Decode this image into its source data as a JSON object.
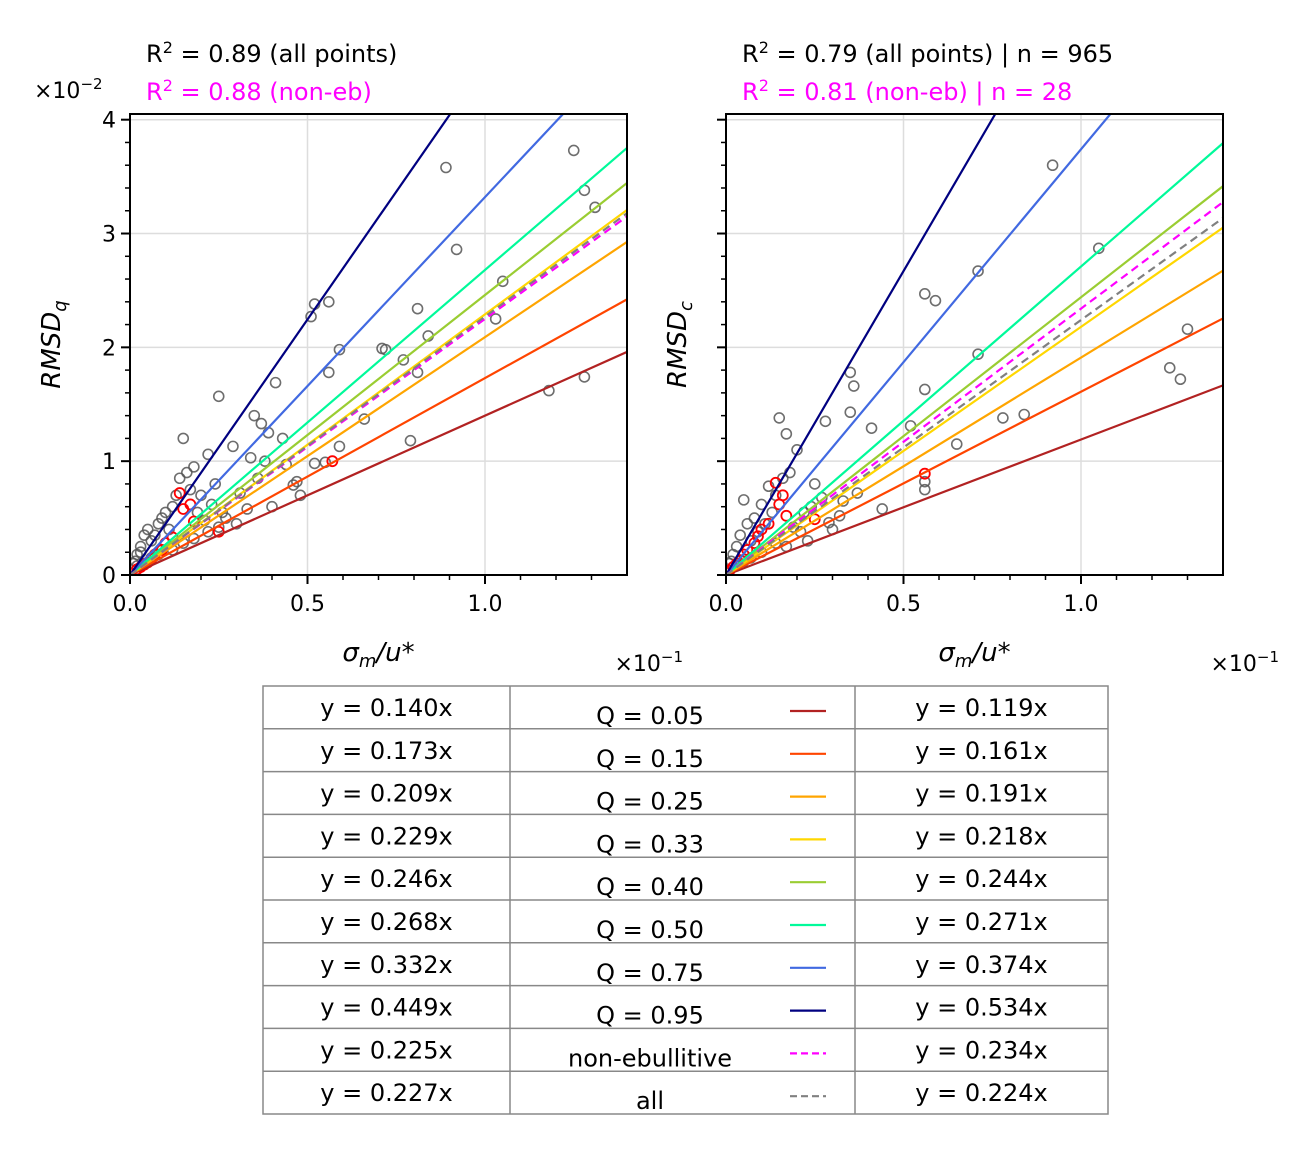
{
  "colors": {
    "Q = 0.05": "#b22222",
    "Q = 0.15": "#ff4500",
    "Q = 0.25": "#ffa500",
    "Q = 0.33": "#ffd700",
    "Q = 0.40": "#9acd32",
    "Q = 0.50": "#00fa9a",
    "Q = 0.75": "#4169e1",
    "Q = 0.95": "#000080",
    "non-ebullitive": "#ff00ff",
    "all": "#808080",
    "points_all": "#555555",
    "points_non_eb": "#ff0000",
    "grid": "#dddddd"
  },
  "chart_data": [
    {
      "type": "scatter",
      "panel": "left",
      "annotation_all": "R² = 0.89 (all points)",
      "annotation_non_eb": "R² = 0.88 (non-eb)",
      "xlabel": "σm/u*",
      "ylabel": "RMSDq",
      "x_multiplier": "×10⁻¹",
      "y_multiplier": "×10⁻²",
      "xlim": [
        0,
        1.4
      ],
      "ylim": [
        0,
        4.05
      ],
      "xticks": [
        "0.0",
        "0.5",
        "1.0"
      ],
      "yticks": [
        "0",
        "1",
        "2",
        "3",
        "4"
      ],
      "grid": true,
      "fit_lines": [
        {
          "name": "Q = 0.05",
          "slope": 0.14
        },
        {
          "name": "Q = 0.15",
          "slope": 0.173
        },
        {
          "name": "Q = 0.25",
          "slope": 0.209
        },
        {
          "name": "Q = 0.33",
          "slope": 0.229
        },
        {
          "name": "Q = 0.40",
          "slope": 0.246
        },
        {
          "name": "Q = 0.50",
          "slope": 0.268
        },
        {
          "name": "Q = 0.75",
          "slope": 0.332
        },
        {
          "name": "Q = 0.95",
          "slope": 0.449
        },
        {
          "name": "non-ebullitive",
          "slope": 0.225,
          "dashed": true
        },
        {
          "name": "all",
          "slope": 0.227,
          "dashed": true
        }
      ],
      "points_all": [
        [
          0.89,
          3.58
        ],
        [
          1.25,
          3.73
        ],
        [
          1.28,
          3.38
        ],
        [
          1.31,
          3.23
        ],
        [
          0.92,
          2.86
        ],
        [
          1.05,
          2.58
        ],
        [
          0.51,
          2.27
        ],
        [
          0.52,
          2.38
        ],
        [
          0.56,
          2.4
        ],
        [
          0.59,
          1.98
        ],
        [
          0.56,
          1.78
        ],
        [
          0.81,
          2.34
        ],
        [
          0.84,
          2.1
        ],
        [
          0.71,
          1.99
        ],
        [
          0.72,
          1.98
        ],
        [
          0.77,
          1.89
        ],
        [
          0.81,
          1.78
        ],
        [
          1.03,
          2.25
        ],
        [
          0.25,
          1.57
        ],
        [
          0.41,
          1.69
        ],
        [
          0.15,
          1.2
        ],
        [
          0.35,
          1.4
        ],
        [
          0.37,
          1.33
        ],
        [
          0.39,
          1.25
        ],
        [
          0.43,
          1.2
        ],
        [
          0.29,
          1.13
        ],
        [
          0.22,
          1.06
        ],
        [
          0.34,
          1.03
        ],
        [
          0.38,
          1.0
        ],
        [
          0.44,
          0.97
        ],
        [
          0.47,
          0.82
        ],
        [
          0.48,
          0.7
        ],
        [
          0.46,
          0.79
        ],
        [
          0.4,
          0.6
        ],
        [
          0.52,
          0.98
        ],
        [
          0.59,
          1.13
        ],
        [
          0.66,
          1.37
        ],
        [
          0.79,
          1.18
        ],
        [
          0.55,
          0.99
        ],
        [
          1.18,
          1.62
        ],
        [
          1.28,
          1.74
        ],
        [
          0.3,
          0.45
        ],
        [
          0.26,
          0.55
        ],
        [
          0.2,
          0.7
        ],
        [
          0.18,
          0.95
        ],
        [
          0.12,
          0.6
        ],
        [
          0.1,
          0.55
        ],
        [
          0.08,
          0.45
        ],
        [
          0.06,
          0.3
        ],
        [
          0.05,
          0.4
        ],
        [
          0.04,
          0.35
        ],
        [
          0.03,
          0.25
        ],
        [
          0.02,
          0.18
        ],
        [
          0.015,
          0.12
        ],
        [
          0.01,
          0.1
        ],
        [
          0.03,
          0.2
        ],
        [
          0.07,
          0.35
        ],
        [
          0.09,
          0.5
        ],
        [
          0.11,
          0.4
        ],
        [
          0.13,
          0.7
        ],
        [
          0.14,
          0.85
        ],
        [
          0.16,
          0.9
        ],
        [
          0.17,
          0.75
        ],
        [
          0.19,
          0.55
        ],
        [
          0.21,
          0.48
        ],
        [
          0.23,
          0.62
        ],
        [
          0.25,
          0.42
        ],
        [
          0.27,
          0.5
        ],
        [
          0.31,
          0.72
        ],
        [
          0.33,
          0.58
        ],
        [
          0.36,
          0.85
        ],
        [
          0.24,
          0.8
        ],
        [
          0.22,
          0.38
        ],
        [
          0.18,
          0.32
        ],
        [
          0.15,
          0.28
        ],
        [
          0.12,
          0.22
        ],
        [
          0.08,
          0.18
        ],
        [
          0.06,
          0.15
        ],
        [
          0.04,
          0.1
        ],
        [
          0.02,
          0.08
        ]
      ],
      "points_non_eb": [
        [
          0.14,
          0.72
        ],
        [
          0.15,
          0.58
        ],
        [
          0.17,
          0.62
        ],
        [
          0.18,
          0.47
        ],
        [
          0.57,
          1.0
        ],
        [
          0.12,
          0.33
        ],
        [
          0.1,
          0.28
        ],
        [
          0.09,
          0.22
        ],
        [
          0.07,
          0.18
        ],
        [
          0.06,
          0.14
        ],
        [
          0.05,
          0.11
        ],
        [
          0.04,
          0.09
        ],
        [
          0.03,
          0.07
        ],
        [
          0.02,
          0.05
        ],
        [
          0.25,
          0.38
        ]
      ]
    },
    {
      "type": "scatter",
      "panel": "right",
      "annotation_all": "R² = 0.79 (all points) | n = 965",
      "annotation_non_eb": "R² = 0.81 (non-eb) | n = 28",
      "xlabel": "σm/u*",
      "ylabel": "RMSDc",
      "x_multiplier": "×10⁻¹",
      "xlim": [
        0,
        1.4
      ],
      "ylim": [
        0,
        4.05
      ],
      "xticks": [
        "0.0",
        "0.5",
        "1.0"
      ],
      "grid": true,
      "fit_lines": [
        {
          "name": "Q = 0.05",
          "slope": 0.119
        },
        {
          "name": "Q = 0.15",
          "slope": 0.161
        },
        {
          "name": "Q = 0.25",
          "slope": 0.191
        },
        {
          "name": "Q = 0.33",
          "slope": 0.218
        },
        {
          "name": "Q = 0.40",
          "slope": 0.244
        },
        {
          "name": "Q = 0.50",
          "slope": 0.271
        },
        {
          "name": "Q = 0.75",
          "slope": 0.374
        },
        {
          "name": "Q = 0.95",
          "slope": 0.534
        },
        {
          "name": "non-ebullitive",
          "slope": 0.234,
          "dashed": true
        },
        {
          "name": "all",
          "slope": 0.224,
          "dashed": true
        }
      ],
      "points_all": [
        [
          0.92,
          3.6
        ],
        [
          1.05,
          2.87
        ],
        [
          0.71,
          2.67
        ],
        [
          0.56,
          2.47
        ],
        [
          0.59,
          2.41
        ],
        [
          0.71,
          1.94
        ],
        [
          0.35,
          1.78
        ],
        [
          0.36,
          1.66
        ],
        [
          0.35,
          1.43
        ],
        [
          0.28,
          1.35
        ],
        [
          0.41,
          1.29
        ],
        [
          0.15,
          1.38
        ],
        [
          0.17,
          1.24
        ],
        [
          0.52,
          1.31
        ],
        [
          0.56,
          1.63
        ],
        [
          0.78,
          1.38
        ],
        [
          0.84,
          1.41
        ],
        [
          0.65,
          1.15
        ],
        [
          0.44,
          0.58
        ],
        [
          0.56,
          0.75
        ],
        [
          0.56,
          0.82
        ],
        [
          1.25,
          1.82
        ],
        [
          1.28,
          1.72
        ],
        [
          1.3,
          2.16
        ],
        [
          0.2,
          1.1
        ],
        [
          0.25,
          0.8
        ],
        [
          0.33,
          0.65
        ],
        [
          0.37,
          0.72
        ],
        [
          0.29,
          0.46
        ],
        [
          0.32,
          0.52
        ],
        [
          0.22,
          0.55
        ],
        [
          0.18,
          0.9
        ],
        [
          0.16,
          0.85
        ],
        [
          0.14,
          0.7
        ],
        [
          0.12,
          0.78
        ],
        [
          0.1,
          0.62
        ],
        [
          0.08,
          0.5
        ],
        [
          0.06,
          0.45
        ],
        [
          0.05,
          0.66
        ],
        [
          0.04,
          0.35
        ],
        [
          0.03,
          0.25
        ],
        [
          0.02,
          0.18
        ],
        [
          0.015,
          0.12
        ],
        [
          0.01,
          0.1
        ],
        [
          0.07,
          0.3
        ],
        [
          0.09,
          0.38
        ],
        [
          0.11,
          0.45
        ],
        [
          0.13,
          0.55
        ],
        [
          0.19,
          0.42
        ],
        [
          0.21,
          0.38
        ],
        [
          0.24,
          0.6
        ],
        [
          0.27,
          0.68
        ],
        [
          0.3,
          0.4
        ],
        [
          0.23,
          0.3
        ],
        [
          0.17,
          0.25
        ],
        [
          0.14,
          0.28
        ],
        [
          0.1,
          0.2
        ],
        [
          0.07,
          0.15
        ],
        [
          0.05,
          0.12
        ],
        [
          0.03,
          0.08
        ]
      ],
      "points_non_eb": [
        [
          0.14,
          0.81
        ],
        [
          0.15,
          0.62
        ],
        [
          0.16,
          0.7
        ],
        [
          0.17,
          0.52
        ],
        [
          0.56,
          0.89
        ],
        [
          0.12,
          0.45
        ],
        [
          0.1,
          0.4
        ],
        [
          0.09,
          0.34
        ],
        [
          0.08,
          0.28
        ],
        [
          0.06,
          0.22
        ],
        [
          0.05,
          0.18
        ],
        [
          0.04,
          0.13
        ],
        [
          0.03,
          0.1
        ],
        [
          0.02,
          0.07
        ],
        [
          0.01,
          0.04
        ],
        [
          0.25,
          0.49
        ]
      ]
    }
  ],
  "legend_table": {
    "rows": [
      {
        "left": "y = 0.140x",
        "label": "Q = 0.05",
        "right": "y = 0.119x"
      },
      {
        "left": "y = 0.173x",
        "label": "Q = 0.15",
        "right": "y = 0.161x"
      },
      {
        "left": "y = 0.209x",
        "label": "Q = 0.25",
        "right": "y = 0.191x"
      },
      {
        "left": "y = 0.229x",
        "label": "Q = 0.33",
        "right": "y = 0.218x"
      },
      {
        "left": "y = 0.246x",
        "label": "Q = 0.40",
        "right": "y = 0.244x"
      },
      {
        "left": "y = 0.268x",
        "label": "Q = 0.50",
        "right": "y = 0.271x"
      },
      {
        "left": "y = 0.332x",
        "label": "Q = 0.75",
        "right": "y = 0.374x"
      },
      {
        "left": "y = 0.449x",
        "label": "Q = 0.95",
        "right": "y = 0.534x"
      },
      {
        "left": "y = 0.225x",
        "label": "non-ebullitive",
        "right": "y = 0.234x"
      },
      {
        "left": "y = 0.227x",
        "label": "all",
        "right": "y = 0.224x"
      }
    ]
  }
}
